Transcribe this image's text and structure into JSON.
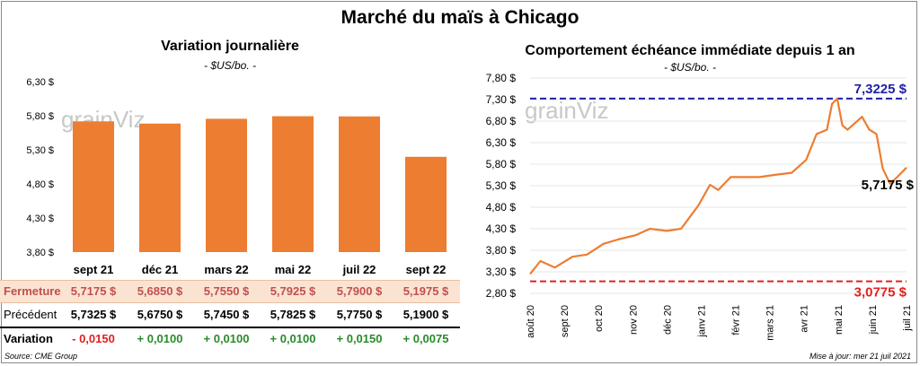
{
  "main_title": "Marché du maïs à Chicago",
  "watermark": "grainViz",
  "colors": {
    "bar": "#ed7d31",
    "line": "#ed7d31",
    "high": "#1f1fa8",
    "low": "#e02020"
  },
  "left": {
    "title": "Variation  journalière",
    "subtitle": "- $US/bo. -",
    "chart_data": {
      "type": "bar",
      "categories": [
        "sept 21",
        "déc 21",
        "mars 22",
        "mai 22",
        "juil 22",
        "sept 22"
      ],
      "values": [
        5.7175,
        5.685,
        5.755,
        5.7925,
        5.79,
        5.1975
      ],
      "ylim": [
        3.8,
        6.3
      ],
      "yticks": [
        "6,30 $",
        "5,80 $",
        "5,30 $",
        "4,80 $",
        "4,30 $",
        "3,80 $"
      ],
      "ytick_values": [
        6.3,
        5.8,
        5.3,
        4.8,
        4.3,
        3.8
      ]
    },
    "table": {
      "close_label": "Fermeture",
      "close": [
        "5,7175  $",
        "5,6850  $",
        "5,7550  $",
        "5,7925  $",
        "5,7900  $",
        "5,1975  $"
      ],
      "prev_label": "Précédent",
      "prev": [
        "5,7325  $",
        "5,6750  $",
        "5,7450  $",
        "5,7825  $",
        "5,7750  $",
        "5,1900  $"
      ],
      "var_label": "Variation",
      "var": [
        "- 0,0150",
        "+ 0,0100",
        "+ 0,0100",
        "+ 0,0100",
        "+ 0,0150",
        "+ 0,0075"
      ]
    }
  },
  "right": {
    "title": "Comportement  échéance immédiate depuis 1 an",
    "subtitle": "- $US/bo. -",
    "chart_data": {
      "type": "line",
      "ylim": [
        2.8,
        7.8
      ],
      "yticks": [
        "7,80 $",
        "7,30 $",
        "6,80 $",
        "6,30 $",
        "5,80 $",
        "5,30 $",
        "4,80 $",
        "4,30 $",
        "3,80 $",
        "3,30 $",
        "2,80 $"
      ],
      "ytick_values": [
        7.8,
        7.3,
        6.8,
        6.3,
        5.8,
        5.3,
        4.8,
        4.3,
        3.8,
        3.3,
        2.8
      ],
      "xticks": [
        "août 20",
        "sept 20",
        "oct 20",
        "nov 20",
        "déc 20",
        "janv 21",
        "févr 21",
        "mars 21",
        "avr 21",
        "mai 21",
        "juin 21",
        "juil 21"
      ],
      "x": [
        "2020-07-22",
        "2020-08-01",
        "2020-08-15",
        "2020-09-01",
        "2020-09-15",
        "2020-10-01",
        "2020-10-15",
        "2020-11-01",
        "2020-11-15",
        "2020-12-01",
        "2020-12-15",
        "2021-01-01",
        "2021-01-12",
        "2021-01-20",
        "2021-02-01",
        "2021-02-15",
        "2021-03-01",
        "2021-03-15",
        "2021-04-01",
        "2021-04-15",
        "2021-04-25",
        "2021-05-05",
        "2021-05-10",
        "2021-05-15",
        "2021-05-20",
        "2021-05-25",
        "2021-06-01",
        "2021-06-08",
        "2021-06-15",
        "2021-06-22",
        "2021-06-28",
        "2021-07-05",
        "2021-07-12",
        "2021-07-21"
      ],
      "y": [
        3.25,
        3.55,
        3.4,
        3.65,
        3.7,
        3.95,
        4.05,
        4.15,
        4.3,
        4.25,
        4.3,
        4.85,
        5.32,
        5.2,
        5.5,
        5.5,
        5.5,
        5.55,
        5.6,
        5.9,
        6.5,
        6.6,
        7.2,
        7.32,
        6.7,
        6.6,
        6.75,
        6.9,
        6.6,
        6.5,
        5.7,
        5.35,
        5.5,
        5.72
      ],
      "high_value": 7.3225,
      "high_label": "7,3225 $",
      "low_value": 3.0775,
      "low_label": "3,0775 $",
      "last_label": "5,7175 $"
    }
  },
  "footer": {
    "source": "Source: CME Group",
    "updated": "Mise à jour: mer 21 juil 2021"
  }
}
